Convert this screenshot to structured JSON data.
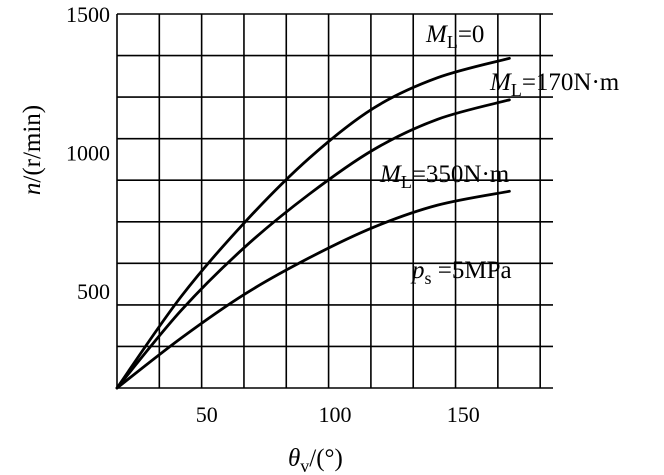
{
  "chart_data": {
    "type": "line",
    "xlabel": {
      "symbol": "θ",
      "subscript": "v",
      "unit": "/(°)"
    },
    "ylabel": {
      "symbol": "n",
      "unit": "/(r/min)"
    },
    "xlim": [
      15,
      185
    ],
    "ylim": [
      150,
      1500
    ],
    "x_ticks": [
      50,
      100,
      150
    ],
    "y_ticks": [
      500,
      1000,
      1500
    ],
    "x_grid_step": 16.5,
    "y_grid_step": 150,
    "grid": true,
    "annotation": {
      "symbol": "p",
      "subscript": "s",
      "rest": " =5MPa"
    },
    "series": [
      {
        "name": "ML=0",
        "label": {
          "symbol": "M",
          "subscript": "L",
          "rest": "=0"
        },
        "x": [
          15,
          40,
          65,
          90,
          115,
          140,
          168
        ],
        "y": [
          150,
          480,
          750,
          980,
          1160,
          1270,
          1340
        ]
      },
      {
        "name": "ML=170N·m",
        "label": {
          "symbol": "M",
          "subscript": "L",
          "rest": "=170N·m"
        },
        "x": [
          15,
          40,
          65,
          90,
          115,
          140,
          168
        ],
        "y": [
          150,
          430,
          660,
          850,
          1010,
          1120,
          1190
        ]
      },
      {
        "name": "ML=350N·m",
        "label": {
          "symbol": "M",
          "subscript": "L",
          "rest": "=350N·m"
        },
        "x": [
          15,
          40,
          65,
          90,
          115,
          140,
          168
        ],
        "y": [
          150,
          330,
          490,
          620,
          730,
          810,
          860
        ]
      }
    ]
  }
}
